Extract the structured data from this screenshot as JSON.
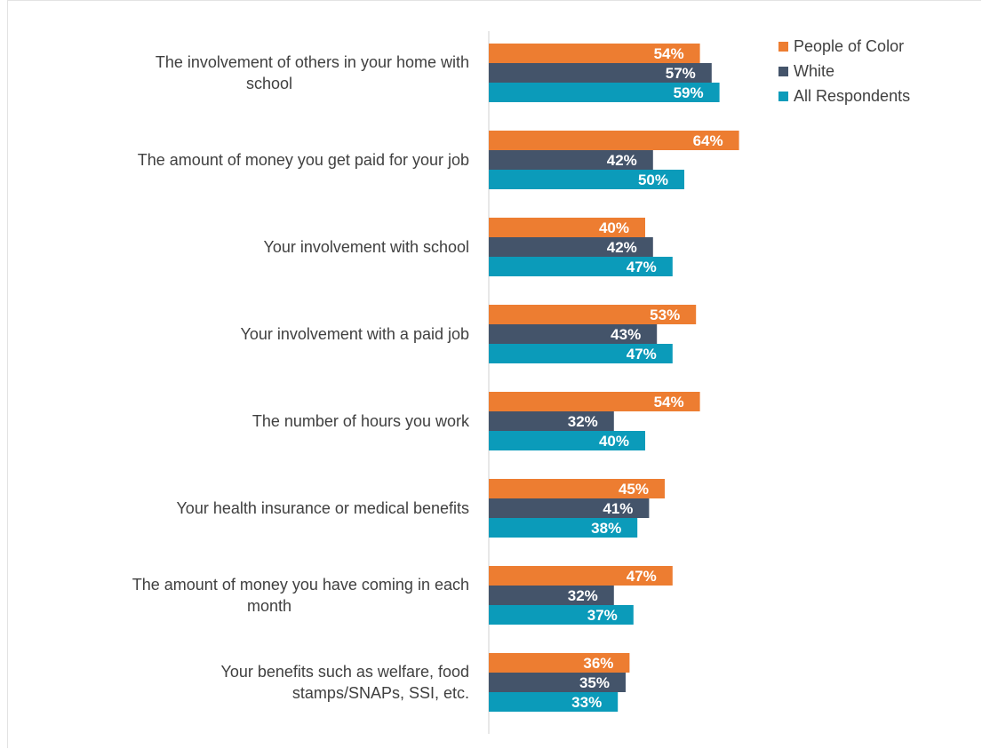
{
  "chart_data": {
    "type": "bar",
    "orientation": "horizontal",
    "categories": [
      [
        "The involvement of others in your home with",
        "school"
      ],
      [
        "The amount of money you get paid for your job"
      ],
      [
        "Your involvement with school"
      ],
      [
        "Your involvement with a paid job"
      ],
      [
        "The number of hours you work"
      ],
      [
        "Your health insurance or medical benefits"
      ],
      [
        "The amount of money you have coming in each",
        "month"
      ],
      [
        "Your benefits such as welfare, food",
        "stamps/SNAPs, SSI, etc."
      ]
    ],
    "series": [
      {
        "name": "People of Color",
        "color": "#ED7D31",
        "values": [
          54,
          64,
          40,
          53,
          54,
          45,
          47,
          36
        ]
      },
      {
        "name": "White",
        "color": "#44546A",
        "values": [
          57,
          42,
          42,
          43,
          32,
          41,
          32,
          35
        ]
      },
      {
        "name": "All Respondents",
        "color": "#0B9BBA",
        "values": [
          59,
          50,
          47,
          47,
          40,
          38,
          37,
          33
        ]
      }
    ],
    "value_suffix": "%",
    "xlim": [
      0,
      100
    ],
    "legend_position": "top-right",
    "grid": false
  }
}
